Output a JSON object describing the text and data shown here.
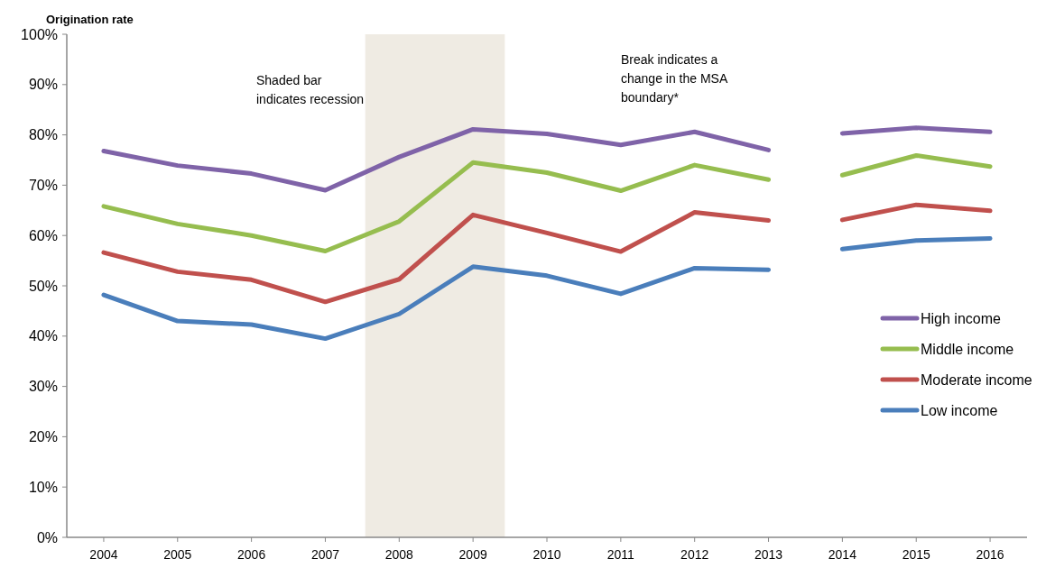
{
  "chart_data": {
    "type": "line",
    "ylabel": "Origination rate",
    "x": [
      2004,
      2005,
      2006,
      2007,
      2008,
      2009,
      2010,
      2011,
      2012,
      2013
    ],
    "xlim": [
      2003.5,
      2016.5
    ],
    "xticks": [
      2004,
      2005,
      2006,
      2007,
      2008,
      2009,
      2010,
      2011,
      2012,
      2013,
      2014,
      2015,
      2016
    ],
    "ylim": [
      0,
      100
    ],
    "yticks": [
      {
        "value": 0,
        "label": "0%"
      },
      {
        "value": 10,
        "label": "10%"
      },
      {
        "value": 20,
        "label": "20%"
      },
      {
        "value": 30,
        "label": "30%"
      },
      {
        "value": 40,
        "label": "40%"
      },
      {
        "value": 50,
        "label": "50%"
      },
      {
        "value": 60,
        "label": "60%"
      },
      {
        "value": 70,
        "label": "70%"
      },
      {
        "value": 80,
        "label": "80%"
      },
      {
        "value": 90,
        "label": "90%"
      },
      {
        "value": 100,
        "label": "100%"
      }
    ],
    "series": [
      {
        "name": "High income",
        "color": "#7f63a8",
        "values": [
          76.8,
          73.9,
          72.3,
          69.0,
          75.6,
          81.1,
          80.2,
          78.0,
          80.6,
          77.0
        ]
      },
      {
        "name": "Middle income",
        "color": "#96bd4f",
        "values": [
          65.8,
          62.3,
          60.0,
          56.9,
          62.8,
          74.5,
          72.5,
          68.9,
          74.0,
          71.1
        ]
      },
      {
        "name": "Moderate income",
        "color": "#c0504d",
        "values": [
          56.6,
          52.8,
          51.2,
          46.8,
          51.3,
          64.1,
          60.5,
          56.8,
          64.6,
          63.0
        ]
      },
      {
        "name": "Low income",
        "color": "#4a7ebb",
        "values": [
          48.2,
          43.0,
          42.3,
          39.5,
          44.4,
          53.8,
          52.0,
          48.4,
          53.5,
          53.2
        ]
      },
      {
        "color": "#7f63a8",
        "x": [
          2014,
          2015,
          2016
        ],
        "values": [
          80.3,
          81.4,
          80.6
        ]
      },
      {
        "color": "#96bd4f",
        "x": [
          2014,
          2015,
          2016
        ],
        "values": [
          72.0,
          75.9,
          73.7
        ]
      },
      {
        "color": "#c0504d",
        "x": [
          2014,
          2015,
          2016
        ],
        "values": [
          63.1,
          66.1,
          64.9
        ]
      },
      {
        "color": "#4a7ebb",
        "x": [
          2014,
          2015,
          2016
        ],
        "values": [
          57.3,
          59.0,
          59.4
        ]
      }
    ],
    "bands": [
      {
        "axis": "x",
        "from": 2007.54,
        "to": 2009.43,
        "color": "#efebe3"
      }
    ],
    "annotations": [
      "Shaded bar indicates recession",
      "Break indicates a change in the MSA boundary*"
    ],
    "legend": "right",
    "grid": false,
    "marker": "none",
    "line_style": "solid"
  }
}
